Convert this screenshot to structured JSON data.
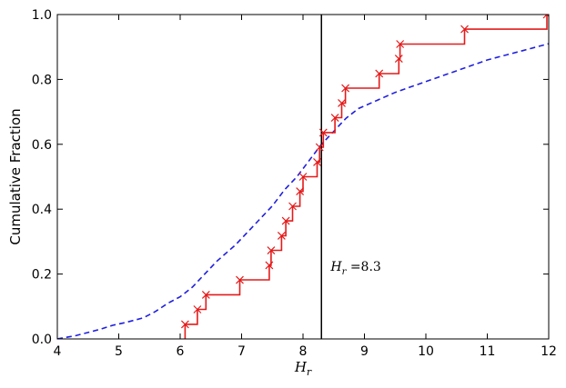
{
  "chart_data": {
    "type": "line",
    "xlabel": "H_r",
    "ylabel": "Cumulative Fraction",
    "xlim": [
      4,
      12
    ],
    "ylim": [
      0.0,
      1.0
    ],
    "x_ticks": [
      4,
      5,
      6,
      7,
      8,
      9,
      10,
      11,
      12
    ],
    "y_ticks": [
      0.0,
      0.2,
      0.4,
      0.6,
      0.8,
      1.0
    ],
    "y_tick_labels": [
      "0.0",
      "0.2",
      "0.4",
      "0.6",
      "0.8",
      "1.0"
    ],
    "grid": false,
    "vline": {
      "x": 8.3,
      "color": "#000000"
    },
    "annotation": {
      "text_main": "H",
      "text_sub": "r",
      "text_rest": " =8.3",
      "x": 8.45,
      "y": 0.21
    },
    "series": [
      {
        "style": "dashed",
        "color": "#1f1fe0",
        "x": [
          4.0,
          4.15,
          4.3,
          4.5,
          4.7,
          4.9,
          5.1,
          5.4,
          5.6,
          5.8,
          6.0,
          6.2,
          6.4,
          6.6,
          6.9,
          7.1,
          7.3,
          7.5,
          7.7,
          7.9,
          8.1,
          8.3,
          8.5,
          8.7,
          8.9,
          9.2,
          9.5,
          9.8,
          10.1,
          10.4,
          10.7,
          11.0,
          11.3,
          11.6,
          12.0
        ],
        "y": [
          0.0,
          0.005,
          0.01,
          0.02,
          0.03,
          0.042,
          0.05,
          0.065,
          0.085,
          0.11,
          0.13,
          0.16,
          0.2,
          0.24,
          0.29,
          0.33,
          0.37,
          0.41,
          0.46,
          0.5,
          0.55,
          0.6,
          0.64,
          0.68,
          0.71,
          0.735,
          0.76,
          0.78,
          0.8,
          0.82,
          0.84,
          0.86,
          0.875,
          0.89,
          0.91
        ]
      },
      {
        "style": "step",
        "color": "#e41a1a",
        "marker": "x",
        "x": [
          6.08,
          6.28,
          6.42,
          6.97,
          7.45,
          7.48,
          7.65,
          7.72,
          7.83,
          7.95,
          8.0,
          8.23,
          8.27,
          8.33,
          8.52,
          8.63,
          8.69,
          9.24,
          9.56,
          9.58,
          10.63,
          11.97
        ],
        "y": [
          0.045,
          0.091,
          0.136,
          0.182,
          0.227,
          0.273,
          0.318,
          0.364,
          0.409,
          0.455,
          0.5,
          0.545,
          0.591,
          0.636,
          0.682,
          0.727,
          0.773,
          0.818,
          0.864,
          0.909,
          0.955,
          1.0
        ]
      }
    ]
  }
}
